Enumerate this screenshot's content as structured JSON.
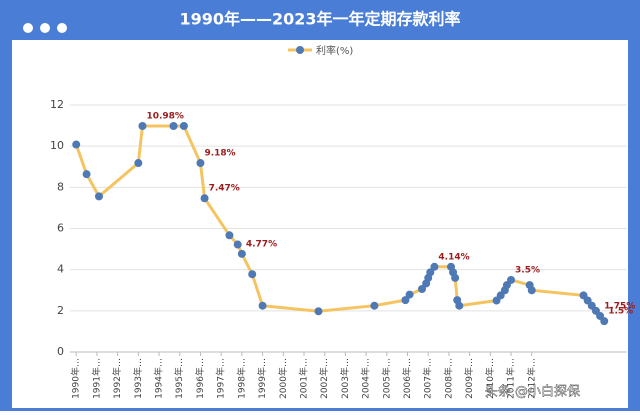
{
  "chart_data": {
    "type": "line",
    "title": "1990年——2023年一年定期存款利率",
    "legend": "利率(%)",
    "x": [
      1990,
      1990.5,
      1991.1,
      1993.0,
      1993.2,
      1994.7,
      1995.2,
      1996.0,
      1996.2,
      1997.4,
      1997.8,
      1998.0,
      1998.5,
      1999.0,
      2001.7,
      2004.4,
      2005.9,
      2006.1,
      2006.7,
      2006.9,
      2007.0,
      2007.1,
      2007.3,
      2008.1,
      2008.2,
      2008.3,
      2008.4,
      2008.5,
      2010.3,
      2010.5,
      2010.7,
      2010.8,
      2011.0,
      2011.9,
      2012.0,
      2014.5,
      2014.7,
      2014.9,
      2015.1,
      2015.3,
      2015.5
    ],
    "series": [
      {
        "name": "利率(%)",
        "color": "#f5c460",
        "marker_color": "#4e79b5",
        "values": [
          10.08,
          8.64,
          7.56,
          9.18,
          10.98,
          10.98,
          10.98,
          9.18,
          7.47,
          5.67,
          5.22,
          4.77,
          3.78,
          2.25,
          1.98,
          2.25,
          2.52,
          2.79,
          3.06,
          3.33,
          3.6,
          3.87,
          4.14,
          4.14,
          3.87,
          3.6,
          2.52,
          2.25,
          2.5,
          2.75,
          3.0,
          3.25,
          3.5,
          3.25,
          3.0,
          2.75,
          2.5,
          2.25,
          2.0,
          1.75,
          1.5
        ],
        "value_labels": [
          null,
          null,
          null,
          null,
          "10.98%",
          null,
          null,
          "9.18%",
          "7.47%",
          null,
          null,
          "4.77%",
          null,
          null,
          null,
          null,
          null,
          null,
          null,
          null,
          null,
          null,
          "4.14%",
          null,
          null,
          null,
          null,
          null,
          null,
          null,
          null,
          null,
          "3.5%",
          null,
          null,
          null,
          null,
          null,
          null,
          "1.75%",
          "1.5%"
        ]
      }
    ],
    "xlim": [
      1989.7,
      2016.6
    ],
    "xticks": [
      {
        "value": 1990,
        "label": "1990年…"
      },
      {
        "value": 1991,
        "label": "1991年…"
      },
      {
        "value": 1992,
        "label": "1992年…"
      },
      {
        "value": 1993,
        "label": "1993年…"
      },
      {
        "value": 1994,
        "label": "1994年…"
      },
      {
        "value": 1995,
        "label": "1995年…"
      },
      {
        "value": 1996,
        "label": "1996年…"
      },
      {
        "value": 1997,
        "label": "1997年…"
      },
      {
        "value": 1998,
        "label": "1998年…"
      },
      {
        "value": 1999,
        "label": "1999年…"
      },
      {
        "value": 2000,
        "label": "2000年…"
      },
      {
        "value": 2001,
        "label": "2001年…"
      },
      {
        "value": 2002,
        "label": "2002年…"
      },
      {
        "value": 2003,
        "label": "2003年…"
      },
      {
        "value": 2004,
        "label": "2004年…"
      },
      {
        "value": 2005,
        "label": "2005年…"
      },
      {
        "value": 2006,
        "label": "2006年…"
      },
      {
        "value": 2007,
        "label": "2007年…"
      },
      {
        "value": 2008,
        "label": "2008年…"
      },
      {
        "value": 2009,
        "label": "2009年…"
      },
      {
        "value": 2010,
        "label": "2010年…"
      },
      {
        "value": 2011,
        "label": "2011年…"
      },
      {
        "value": 2012,
        "label": "2012年…"
      }
    ],
    "ylim": [
      0,
      12
    ],
    "yticks": [
      0,
      2,
      4,
      6,
      8,
      10,
      12
    ],
    "grid": true,
    "watermark": "头条 @小白探保"
  }
}
